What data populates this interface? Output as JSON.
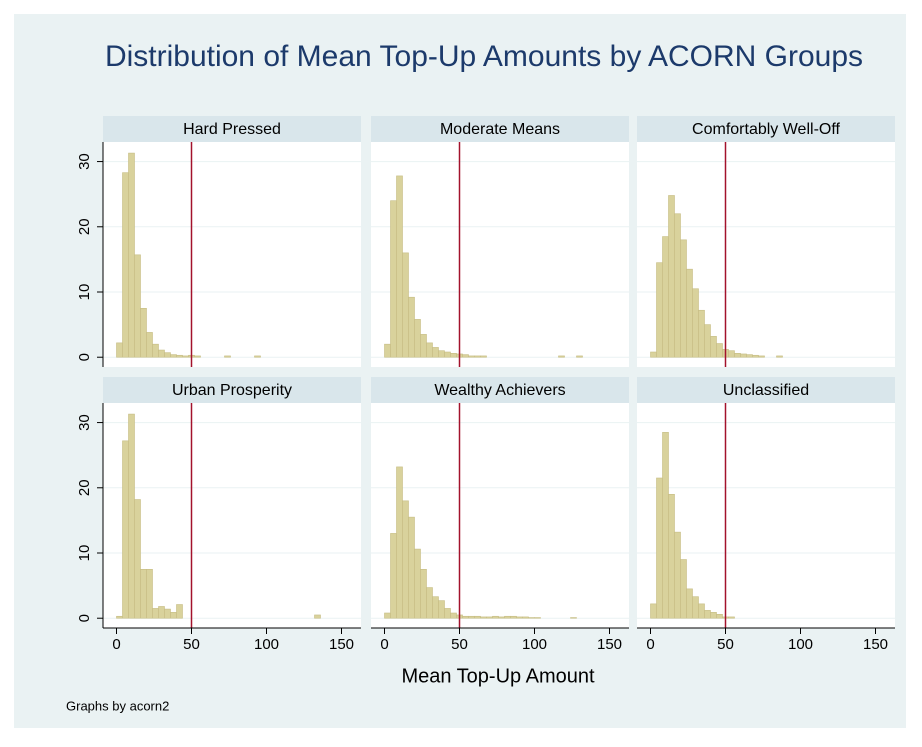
{
  "title": "Distribution of Mean Top-Up Amounts by ACORN Groups",
  "xlabel": "Mean Top-Up Amount",
  "note": "Graphs by acorn2",
  "chart_data": [
    {
      "type": "histogram",
      "title": "Hard Pressed",
      "color": "#d9d29c",
      "reference_line": 50,
      "reference_color": "#a3122c",
      "bins": [
        0,
        4,
        8,
        12,
        16,
        20,
        24,
        28,
        32,
        36,
        40,
        44,
        48,
        52,
        56,
        60,
        64,
        68,
        72,
        76,
        80,
        84,
        88,
        92,
        96
      ],
      "values": [
        2.2,
        28.3,
        31.3,
        15.7,
        7.5,
        3.8,
        2.0,
        1.1,
        0.7,
        0.4,
        0.3,
        0.2,
        0.3,
        0.2,
        0,
        0,
        0,
        0,
        0.2,
        0,
        0,
        0,
        0,
        0.2
      ],
      "xlim": [
        -9,
        163
      ],
      "ylim": [
        -1.5,
        33
      ],
      "yticks": [
        0,
        10,
        20,
        30
      ],
      "grid": true
    },
    {
      "type": "histogram",
      "title": "Moderate Means",
      "color": "#d9d29c",
      "reference_line": 50,
      "reference_color": "#a3122c",
      "bins": [
        0,
        4,
        8,
        12,
        16,
        20,
        24,
        28,
        32,
        36,
        40,
        44,
        48,
        52,
        56,
        60,
        64,
        68,
        72,
        76,
        80,
        84,
        88,
        92,
        96,
        100,
        104,
        108,
        112,
        116,
        120,
        124,
        128,
        132
      ],
      "values": [
        2,
        24,
        27.8,
        16,
        9.2,
        5.8,
        3.5,
        2.2,
        1.5,
        1,
        0.8,
        0.6,
        0.5,
        0.4,
        0.2,
        0.2,
        0.2,
        0,
        0,
        0,
        0,
        0,
        0,
        0,
        0,
        0,
        0,
        0,
        0,
        0.2,
        0,
        0,
        0.2
      ],
      "xlim": [
        -9,
        163
      ],
      "ylim": [
        -1.5,
        33
      ],
      "yticks": [
        0,
        10,
        20,
        30
      ],
      "grid": true
    },
    {
      "type": "histogram",
      "title": "Comfortably Well-Off",
      "color": "#d9d29c",
      "reference_line": 50,
      "reference_color": "#a3122c",
      "bins": [
        0,
        4,
        8,
        12,
        16,
        20,
        24,
        28,
        32,
        36,
        40,
        44,
        48,
        52,
        56,
        60,
        64,
        68,
        72,
        76,
        80,
        84,
        88
      ],
      "values": [
        0.8,
        14.5,
        18.5,
        24.8,
        22,
        18,
        13.5,
        10.5,
        7.2,
        5,
        3.2,
        2.1,
        1.2,
        1,
        0.6,
        0.5,
        0.4,
        0.3,
        0.2,
        0,
        0,
        0.2
      ],
      "xlim": [
        -9,
        163
      ],
      "ylim": [
        -1.5,
        33
      ],
      "yticks": [
        0,
        10,
        20,
        30
      ],
      "grid": true
    },
    {
      "type": "histogram",
      "title": "Urban Prosperity",
      "color": "#d9d29c",
      "reference_line": 50,
      "reference_color": "#a3122c",
      "bins": [
        0,
        4,
        8,
        12,
        16,
        20,
        24,
        28,
        32,
        36,
        40,
        44,
        48,
        52,
        56,
        60,
        64,
        68,
        72,
        76,
        80,
        84,
        88,
        92,
        96,
        100,
        104,
        108,
        112,
        116,
        120,
        124,
        128,
        132,
        136
      ],
      "values": [
        0.3,
        27.2,
        31.3,
        18.2,
        7.5,
        7.5,
        1.5,
        1.8,
        1.4,
        0.9,
        2.1,
        0,
        0,
        0,
        0,
        0,
        0,
        0,
        0,
        0,
        0,
        0,
        0,
        0,
        0,
        0,
        0,
        0,
        0,
        0,
        0,
        0,
        0,
        0.5
      ],
      "xlim": [
        -9,
        163
      ],
      "ylim": [
        -1.5,
        33
      ],
      "xticks": [
        0,
        50,
        100,
        150
      ],
      "yticks": [
        0,
        10,
        20,
        30
      ],
      "grid": true
    },
    {
      "type": "histogram",
      "title": "Wealthy Achievers",
      "color": "#d9d29c",
      "reference_line": 50,
      "reference_color": "#a3122c",
      "bins": [
        0,
        4,
        8,
        12,
        16,
        20,
        24,
        28,
        32,
        36,
        40,
        44,
        48,
        52,
        56,
        60,
        64,
        68,
        72,
        76,
        80,
        84,
        88,
        92,
        96,
        100,
        104,
        108,
        112,
        116,
        120,
        124,
        128
      ],
      "values": [
        0.8,
        13,
        23.2,
        18,
        15.5,
        10.6,
        7.5,
        4.7,
        3.3,
        2.7,
        1.5,
        0.8,
        0.5,
        0.3,
        0.3,
        0.3,
        0.2,
        0.2,
        0.3,
        0.2,
        0.3,
        0.3,
        0.2,
        0.2,
        0.1,
        0.1,
        0,
        0,
        0,
        0,
        0,
        0.1
      ],
      "xlim": [
        -9,
        163
      ],
      "ylim": [
        -1.5,
        33
      ],
      "xticks": [
        0,
        50,
        100,
        150
      ],
      "yticks": [
        0,
        10,
        20,
        30
      ],
      "grid": true
    },
    {
      "type": "histogram",
      "title": "Unclassified",
      "color": "#d9d29c",
      "reference_line": 50,
      "reference_color": "#a3122c",
      "bins": [
        0,
        4,
        8,
        12,
        16,
        20,
        24,
        28,
        32,
        36,
        40,
        44,
        48,
        52,
        56
      ],
      "values": [
        2.2,
        21.5,
        28.5,
        19,
        13.2,
        9,
        4.5,
        3.3,
        2.2,
        1.2,
        0.9,
        0.6,
        0.2,
        0.2
      ],
      "xlim": [
        -9,
        163
      ],
      "ylim": [
        -1.5,
        33
      ],
      "xticks": [
        0,
        50,
        100,
        150
      ],
      "yticks": [
        0,
        10,
        20,
        30
      ],
      "grid": true
    }
  ]
}
